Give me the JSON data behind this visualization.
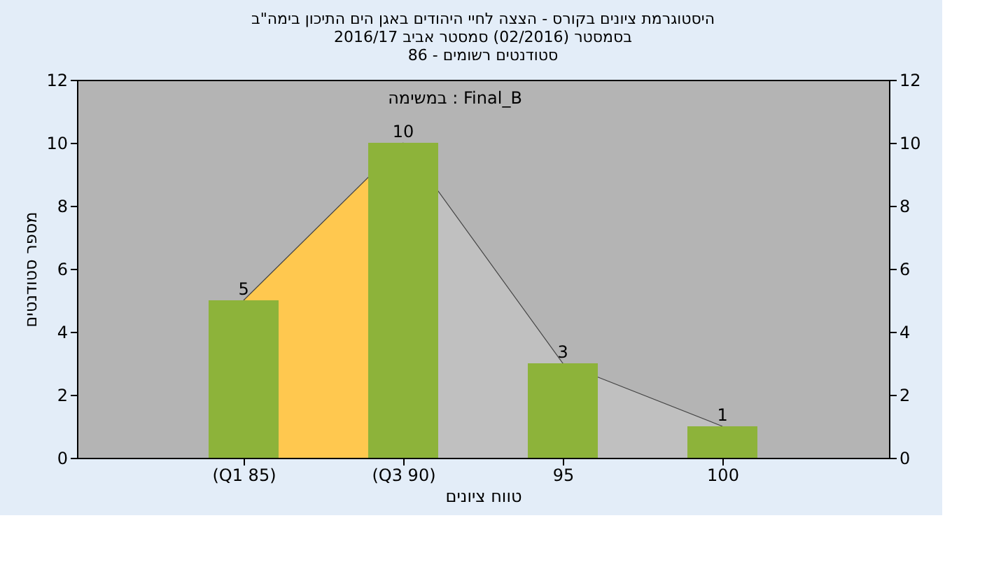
{
  "chart_data": {
    "type": "bar",
    "title": [
      "היסטוגרמת ציונים בקורס - הצצה לחיי היהודים באגן הים התיכון בימה\"ב",
      "בסמסטר  (02/2016)  סמסטר אביב 2016/17",
      "סטודנטים רשומים - 86"
    ],
    "xlabel": "טווח ציונים",
    "ylabel": "מספר סטודנטים",
    "categories": [
      "(Q1 85)",
      "(Q3 90)",
      "95",
      "100"
    ],
    "series": [
      {
        "type": "area",
        "color": "#ffc84f",
        "values": [
          5,
          10,
          null,
          null
        ]
      },
      {
        "type": "area",
        "color": "#c0c0c0",
        "values": [
          null,
          10,
          3,
          1
        ]
      },
      {
        "color": "#8db33a",
        "values": [
          5,
          10,
          3,
          1
        ],
        "value_labels": [
          "5",
          "10",
          "3",
          "1"
        ]
      }
    ],
    "annotations": [
      "במשימה : Final_B"
    ],
    "ylim": [
      0,
      12
    ],
    "yticks": [
      0,
      2,
      4,
      6,
      8,
      10,
      12
    ],
    "y2lim": [
      0,
      12
    ],
    "y2ticks": [
      0,
      2,
      4,
      6,
      8,
      10,
      12
    ],
    "grid": false
  }
}
